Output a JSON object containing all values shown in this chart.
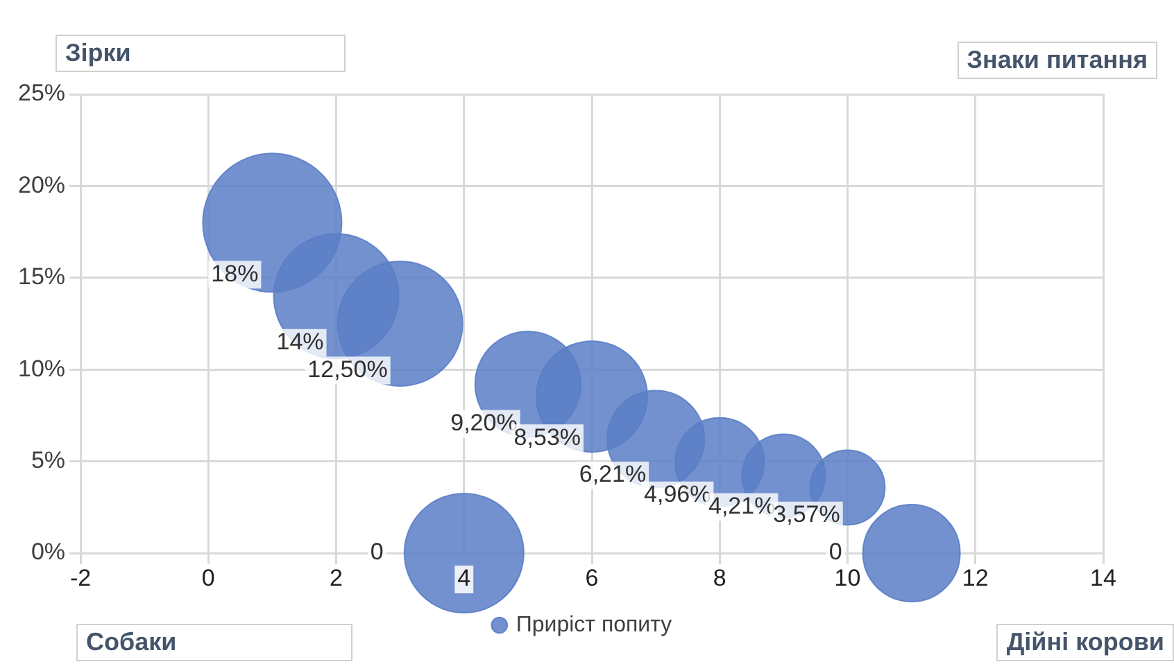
{
  "chart_data": {
    "type": "bubble",
    "annotations": [
      "Зірки",
      "Знаки питання",
      "Собаки",
      "Дійні корови"
    ],
    "x": [
      1,
      2,
      3,
      4,
      5,
      6,
      7,
      8,
      9,
      10,
      11
    ],
    "series": [
      {
        "name": "Приріст попиту",
        "color": "#5a7ec6",
        "values": [
          18,
          14,
          12.5,
          0,
          9.2,
          8.53,
          6.21,
          4.96,
          4.21,
          3.57,
          0
        ],
        "sizes": [
          1,
          0.81,
          0.81,
          0.74,
          0.58,
          0.64,
          0.49,
          0.41,
          0.36,
          0.29,
          0.49
        ],
        "value_labels": [
          "18%",
          "14%",
          "12,50%",
          "0",
          "9,20%",
          "8,53%",
          "6,21%",
          "4,96%",
          "4,21%",
          "3,57%",
          "0"
        ]
      }
    ],
    "xlim": [
      -2,
      14
    ],
    "xticks": [
      -2,
      0,
      2,
      4,
      6,
      8,
      10,
      12,
      14
    ],
    "ylim": [
      0,
      25
    ],
    "yticks": [
      {
        "value": 0,
        "label": "0%"
      },
      {
        "value": 5,
        "label": "5%"
      },
      {
        "value": 10,
        "label": "10%"
      },
      {
        "value": 15,
        "label": "15%"
      },
      {
        "value": 20,
        "label": "20%"
      },
      {
        "value": 25,
        "label": "25%"
      }
    ],
    "grid": true,
    "legend": "bottom"
  }
}
